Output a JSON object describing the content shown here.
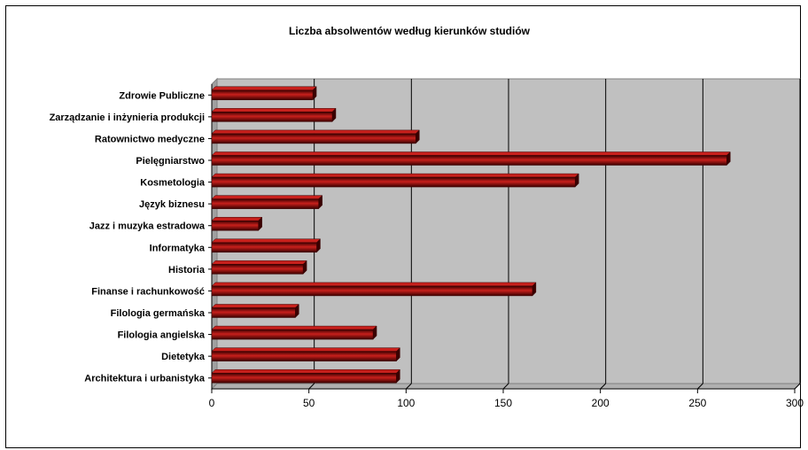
{
  "chart_data": {
    "type": "bar",
    "orientation": "horizontal",
    "title": "Liczba absolwentów według kierunków studiów",
    "categories": [
      "Zdrowie Publiczne",
      "Zarządzanie i inżynieria produkcji",
      "Ratownictwo medyczne",
      "Pielęgniarstwo",
      "Kosmetologia",
      "Język biznesu",
      "Jazz i muzyka estradowa",
      "Informatyka",
      "Historia",
      "Finanse i rachunkowość",
      "Filologia germańska",
      "Filologia angielska",
      "Dietetyka",
      "Architektura i urbanistyka"
    ],
    "values": [
      52,
      62,
      105,
      265,
      187,
      55,
      24,
      54,
      47,
      165,
      43,
      83,
      95,
      95
    ],
    "xlim": [
      0,
      300
    ],
    "x_ticks": [
      "0",
      "50",
      "100",
      "150",
      "200",
      "250",
      "300"
    ],
    "grid": "vertical",
    "legend": "none",
    "colors": {
      "bar": "#7a0a0a",
      "bar_highlight": "#c8201c",
      "bar_dark": "#3a0000",
      "plot_background": "#c0c0c0",
      "depth_wall": "#a0a0a0",
      "gridline": "#000000"
    }
  }
}
